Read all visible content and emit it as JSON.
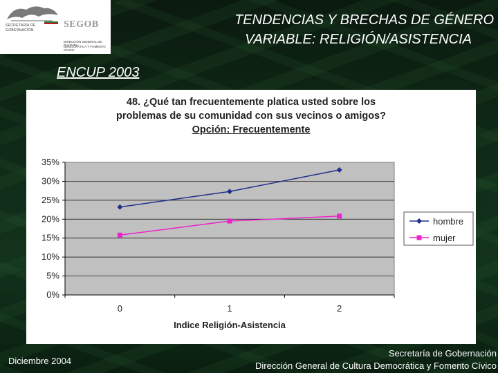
{
  "header": {
    "title_line1": "TENDENCIAS Y BRECHAS DE GÉNERO",
    "title_line2": "VARIABLE: RELIGIÓN/ASISTENCIA",
    "subtitle": "ENCUP 2003"
  },
  "logo": {
    "name": "SEGOB",
    "line1": "SECRETARÍA DE",
    "line2": "GOBERNACIÓN",
    "sub1": "DIRECCIÓN GENERAL DE CULTURA",
    "sub2": "DEMOCRÁTICA Y FOMENTO CÍVICO"
  },
  "footer": {
    "date": "Diciembre  2004",
    "org_line1": "Secretaría de Gobernación",
    "org_line2": "Dirección General de Cultura Democrática y Fomento Cívico"
  },
  "colors": {
    "hombre": "#1f2f8c",
    "mujer": "#ee22cc",
    "plot_bg": "#c0c0c0"
  },
  "chart_data": {
    "type": "line",
    "title_lines": [
      "48. ¿Qué tan frecuentemente platica usted sobre los",
      "problemas de su comunidad con sus vecinos o amigos?",
      "Opción: Frecuentemente"
    ],
    "xlabel": "Indice Religión-Asistencia",
    "ylabel": "",
    "x": [
      0,
      1,
      2
    ],
    "x_tick_labels": [
      "0",
      "1",
      "2"
    ],
    "y_tick_labels": [
      "35%",
      "30%",
      "25%",
      "20%",
      "15%",
      "10%",
      "5%",
      "0%"
    ],
    "ylim": [
      0,
      35
    ],
    "legend_position": "right",
    "grid": true,
    "series": [
      {
        "name": "hombre",
        "values": [
          23.2,
          27.3,
          33.0
        ],
        "marker": "diamond"
      },
      {
        "name": "mujer",
        "values": [
          15.8,
          19.5,
          20.8
        ],
        "marker": "square"
      }
    ]
  }
}
